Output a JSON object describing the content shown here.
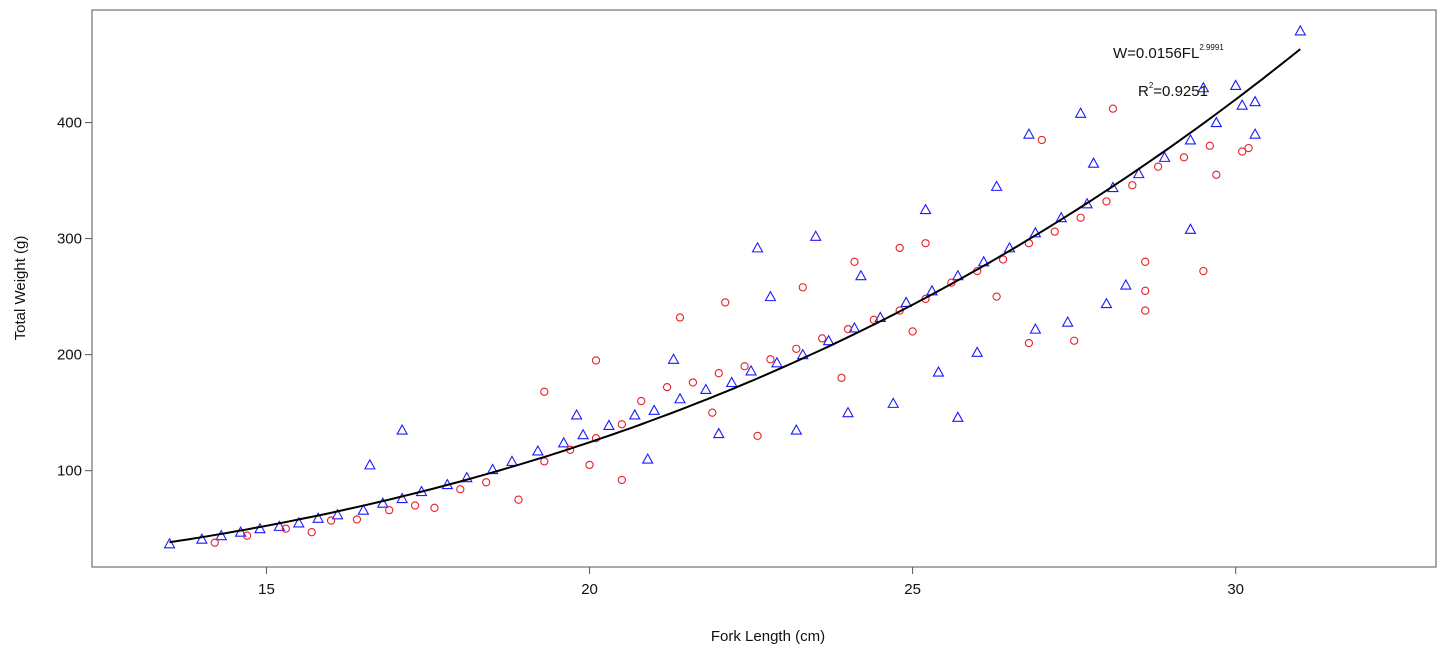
{
  "chart_data": {
    "type": "scatter",
    "title": "",
    "xlabel": "Fork Length (cm)",
    "ylabel": "Total Weight (g)",
    "xlim": [
      12.3,
      33.1
    ],
    "ylim": [
      17,
      497
    ],
    "x_ticks": [
      15,
      20,
      25,
      30
    ],
    "y_ticks": [
      100,
      200,
      300,
      400
    ],
    "grid": false,
    "legend": "none",
    "series": [
      {
        "marker": "triangle",
        "color": "#1a1aff",
        "points": [
          [
            13.5,
            37
          ],
          [
            14.0,
            41
          ],
          [
            14.3,
            44
          ],
          [
            14.6,
            47
          ],
          [
            14.9,
            50
          ],
          [
            15.2,
            52
          ],
          [
            15.5,
            55
          ],
          [
            15.8,
            59
          ],
          [
            16.1,
            62
          ],
          [
            16.5,
            66
          ],
          [
            16.8,
            72
          ],
          [
            17.1,
            76
          ],
          [
            17.4,
            82
          ],
          [
            17.8,
            88
          ],
          [
            18.1,
            94
          ],
          [
            18.5,
            101
          ],
          [
            18.8,
            108
          ],
          [
            19.2,
            117
          ],
          [
            19.6,
            124
          ],
          [
            19.9,
            131
          ],
          [
            20.3,
            139
          ],
          [
            20.7,
            148
          ],
          [
            21.0,
            152
          ],
          [
            21.4,
            162
          ],
          [
            21.8,
            170
          ],
          [
            22.2,
            176
          ],
          [
            22.5,
            186
          ],
          [
            22.9,
            193
          ],
          [
            23.3,
            200
          ],
          [
            23.7,
            212
          ],
          [
            24.1,
            223
          ],
          [
            24.5,
            232
          ],
          [
            24.9,
            245
          ],
          [
            25.3,
            255
          ],
          [
            25.7,
            268
          ],
          [
            26.1,
            280
          ],
          [
            26.5,
            292
          ],
          [
            26.9,
            305
          ],
          [
            27.3,
            318
          ],
          [
            27.7,
            330
          ],
          [
            28.1,
            344
          ],
          [
            28.5,
            356
          ],
          [
            28.9,
            370
          ],
          [
            29.3,
            385
          ],
          [
            29.7,
            400
          ],
          [
            30.1,
            415
          ],
          [
            30.3,
            418
          ],
          [
            31.0,
            479
          ],
          [
            16.6,
            105
          ],
          [
            17.1,
            135
          ],
          [
            22.6,
            292
          ],
          [
            23.5,
            302
          ],
          [
            25.7,
            146
          ],
          [
            26.8,
            390
          ],
          [
            27.6,
            408
          ],
          [
            28.0,
            244
          ],
          [
            29.5,
            430
          ],
          [
            20.9,
            110
          ],
          [
            22.0,
            132
          ],
          [
            23.2,
            135
          ],
          [
            24.0,
            150
          ],
          [
            24.7,
            158
          ],
          [
            25.4,
            185
          ],
          [
            26.0,
            202
          ],
          [
            26.9,
            222
          ],
          [
            27.4,
            228
          ],
          [
            28.3,
            260
          ],
          [
            29.3,
            308
          ],
          [
            30.3,
            390
          ],
          [
            19.8,
            148
          ],
          [
            21.3,
            196
          ],
          [
            22.8,
            250
          ],
          [
            24.2,
            268
          ],
          [
            25.2,
            325
          ],
          [
            26.3,
            345
          ],
          [
            27.8,
            365
          ],
          [
            30.0,
            432
          ]
        ]
      },
      {
        "marker": "circle",
        "color": "#e8202a",
        "points": [
          [
            14.2,
            38
          ],
          [
            14.7,
            44
          ],
          [
            15.3,
            50
          ],
          [
            15.7,
            47
          ],
          [
            16.0,
            57
          ],
          [
            16.4,
            58
          ],
          [
            16.9,
            66
          ],
          [
            17.3,
            70
          ],
          [
            17.6,
            68
          ],
          [
            18.0,
            84
          ],
          [
            18.4,
            90
          ],
          [
            18.9,
            75
          ],
          [
            19.3,
            108
          ],
          [
            19.7,
            118
          ],
          [
            20.1,
            128
          ],
          [
            20.5,
            140
          ],
          [
            20.8,
            160
          ],
          [
            21.2,
            172
          ],
          [
            21.6,
            176
          ],
          [
            22.0,
            184
          ],
          [
            22.4,
            190
          ],
          [
            22.8,
            196
          ],
          [
            23.2,
            205
          ],
          [
            23.6,
            214
          ],
          [
            24.0,
            222
          ],
          [
            24.4,
            230
          ],
          [
            24.8,
            238
          ],
          [
            25.2,
            248
          ],
          [
            25.6,
            262
          ],
          [
            26.0,
            272
          ],
          [
            26.4,
            282
          ],
          [
            26.8,
            296
          ],
          [
            27.2,
            306
          ],
          [
            27.6,
            318
          ],
          [
            28.0,
            332
          ],
          [
            28.4,
            346
          ],
          [
            28.8,
            362
          ],
          [
            29.2,
            370
          ],
          [
            29.6,
            380
          ],
          [
            30.1,
            375
          ],
          [
            19.3,
            168
          ],
          [
            20.5,
            92
          ],
          [
            20.0,
            105
          ],
          [
            20.1,
            195
          ],
          [
            21.4,
            232
          ],
          [
            22.1,
            245
          ],
          [
            23.3,
            258
          ],
          [
            24.1,
            280
          ],
          [
            24.8,
            292
          ],
          [
            25.2,
            296
          ],
          [
            27.0,
            385
          ],
          [
            27.5,
            212
          ],
          [
            28.1,
            412
          ],
          [
            28.6,
            238
          ],
          [
            28.6,
            255
          ],
          [
            28.6,
            280
          ],
          [
            29.5,
            272
          ],
          [
            29.7,
            355
          ],
          [
            30.2,
            378
          ],
          [
            26.8,
            210
          ],
          [
            22.6,
            130
          ],
          [
            21.9,
            150
          ],
          [
            23.9,
            180
          ],
          [
            25.0,
            220
          ],
          [
            26.3,
            250
          ]
        ]
      }
    ],
    "fit_curve": {
      "a": 0.0156,
      "b": 2.9991,
      "x_range": [
        13.5,
        31.0
      ],
      "color": "#000000"
    },
    "annotations": {
      "equation_base": "W=0.0156FL",
      "equation_exponent": "2.9991",
      "r2_base": "R",
      "r2_exponent": "2",
      "r2_value": "=0.9251"
    }
  }
}
